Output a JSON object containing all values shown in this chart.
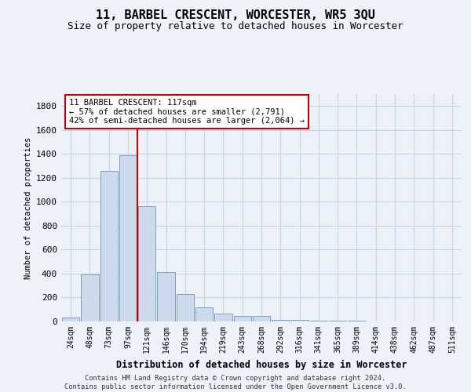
{
  "title": "11, BARBEL CRESCENT, WORCESTER, WR5 3QU",
  "subtitle": "Size of property relative to detached houses in Worcester",
  "xlabel": "Distribution of detached houses by size in Worcester",
  "ylabel": "Number of detached properties",
  "categories": [
    "24sqm",
    "48sqm",
    "73sqm",
    "97sqm",
    "121sqm",
    "146sqm",
    "170sqm",
    "194sqm",
    "219sqm",
    "243sqm",
    "268sqm",
    "292sqm",
    "316sqm",
    "341sqm",
    "365sqm",
    "389sqm",
    "414sqm",
    "438sqm",
    "462sqm",
    "487sqm",
    "511sqm"
  ],
  "values": [
    30,
    390,
    1255,
    1390,
    960,
    415,
    230,
    115,
    65,
    45,
    45,
    15,
    10,
    5,
    5,
    5,
    2,
    2,
    2,
    2,
    2
  ],
  "bar_color": "#cddaeb",
  "bar_edge_color": "#7aa0c4",
  "vline_x_index": 4,
  "vline_color": "#cc0000",
  "annotation_line1": "11 BARBEL CRESCENT: 117sqm",
  "annotation_line2": "← 57% of detached houses are smaller (2,791)",
  "annotation_line3": "42% of semi-detached houses are larger (2,064) →",
  "annotation_box_color": "#cc0000",
  "annotation_box_bg": "#ffffff",
  "ylim": [
    0,
    1900
  ],
  "yticks": [
    0,
    200,
    400,
    600,
    800,
    1000,
    1200,
    1400,
    1600,
    1800
  ],
  "grid_color": "#c8d4e4",
  "footer_text": "Contains HM Land Registry data © Crown copyright and database right 2024.\nContains public sector information licensed under the Open Government Licence v3.0.",
  "bg_color": "#edf2f9"
}
